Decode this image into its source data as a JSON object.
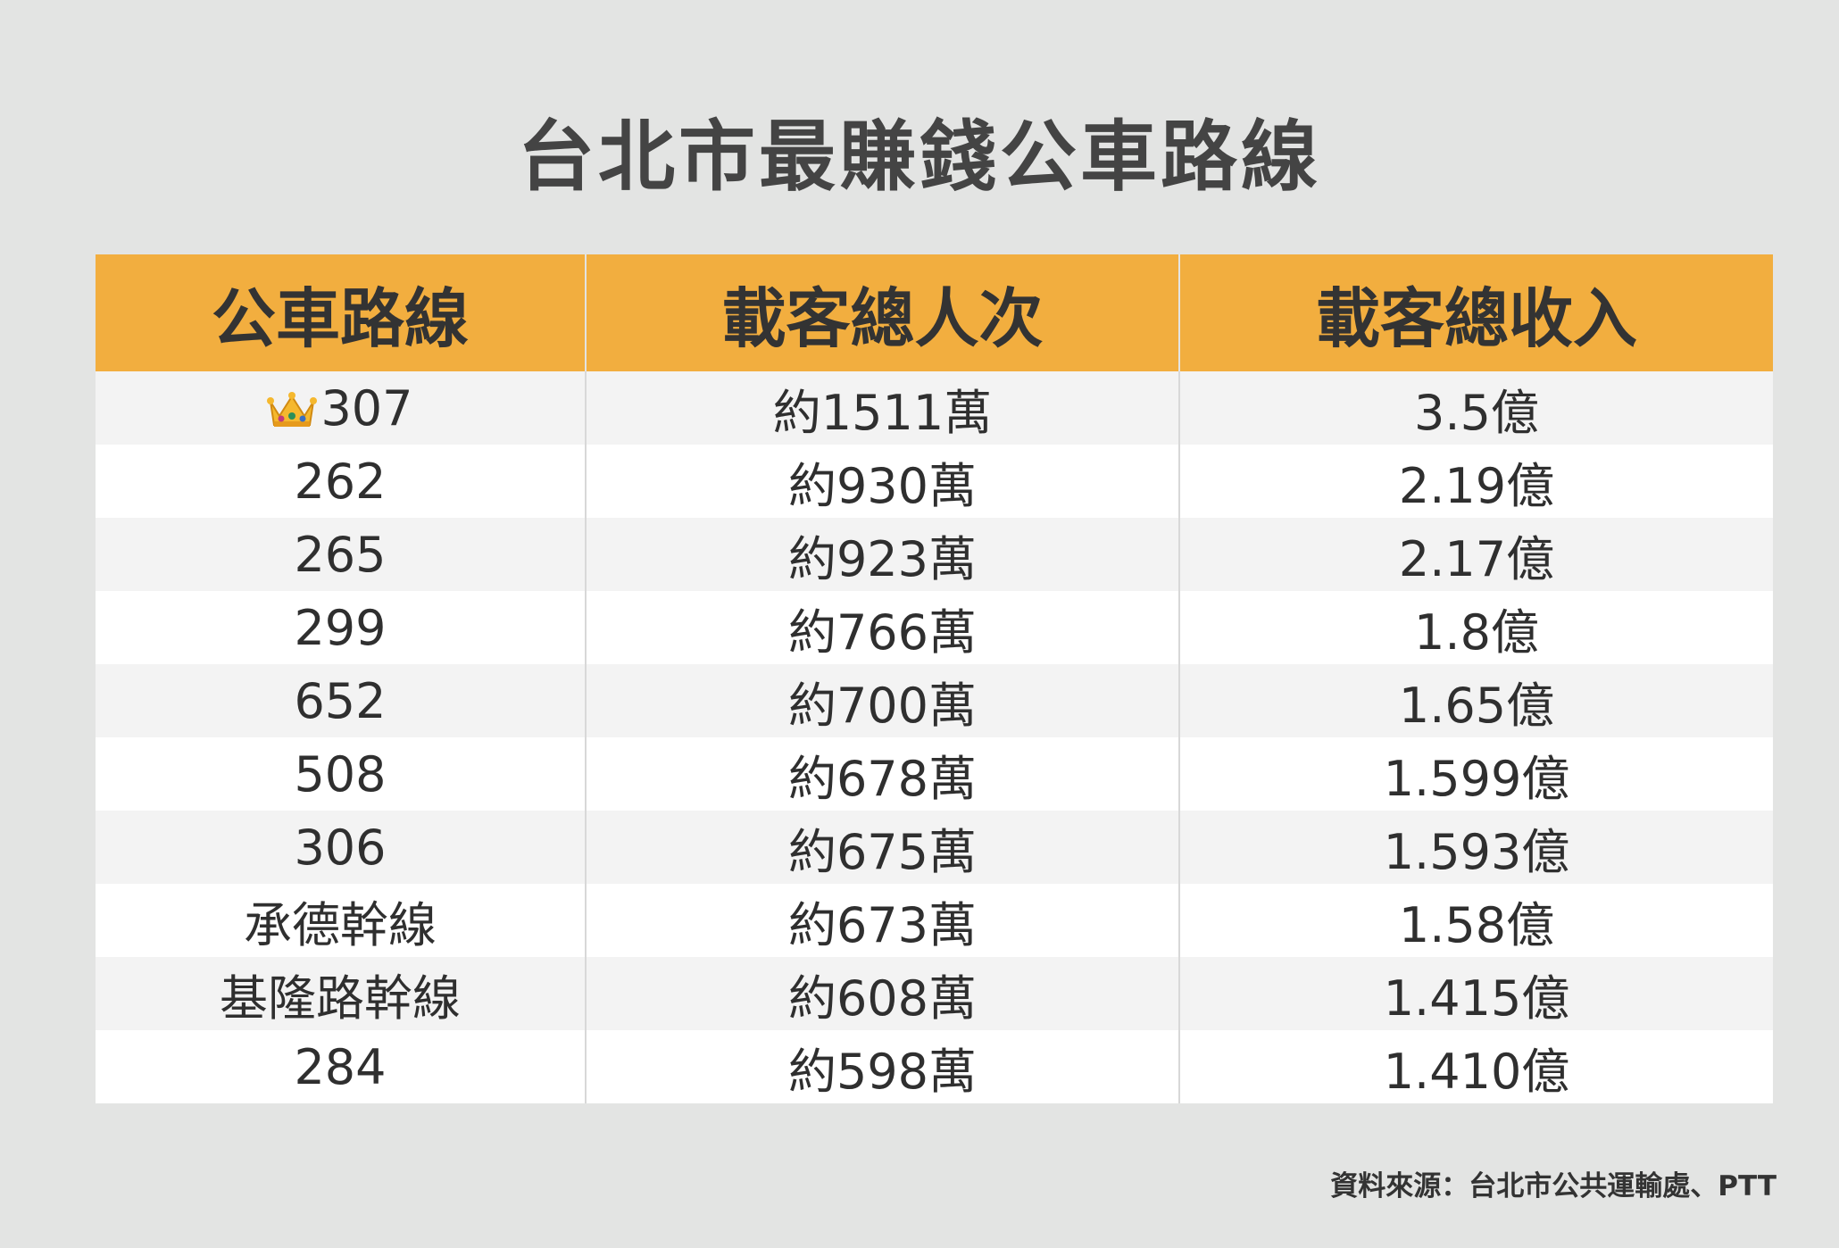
{
  "title": "台北市最賺錢公車路線",
  "colors": {
    "header_bg": "#f2ae3f",
    "row_odd": "#f3f3f3",
    "row_even": "#ffffff",
    "page_bg": "#e3e4e3"
  },
  "chart_data": {
    "type": "table",
    "columns": [
      "公車路線",
      "載客總人次",
      "載客總收入"
    ],
    "rows": [
      {
        "route": "307",
        "icon": "crown-icon",
        "ridership": "約1511萬",
        "revenue": "3.5億"
      },
      {
        "route": "262",
        "ridership": "約930萬",
        "revenue": "2.19億"
      },
      {
        "route": "265",
        "ridership": "約923萬",
        "revenue": "2.17億"
      },
      {
        "route": "299",
        "ridership": "約766萬",
        "revenue": "1.8億"
      },
      {
        "route": "652",
        "ridership": "約700萬",
        "revenue": "1.65億"
      },
      {
        "route": "508",
        "ridership": "約678萬",
        "revenue": "1.599億"
      },
      {
        "route": "306",
        "ridership": "約675萬",
        "revenue": "1.593億"
      },
      {
        "route": "承德幹線",
        "ridership": "約673萬",
        "revenue": "1.58億"
      },
      {
        "route": "基隆路幹線",
        "ridership": "約608萬",
        "revenue": "1.415億"
      },
      {
        "route": "284",
        "ridership": "約598萬",
        "revenue": "1.410億"
      }
    ]
  },
  "source": "資料來源：台北市公共運輸處、PTT"
}
